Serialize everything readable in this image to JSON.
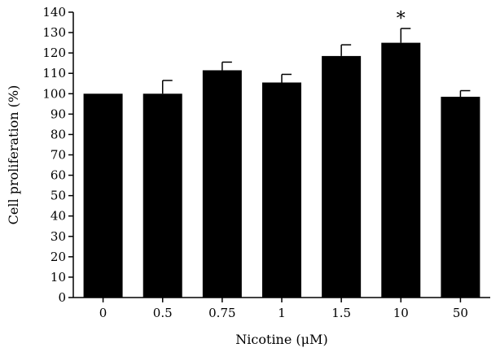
{
  "chart_data": {
    "type": "bar",
    "title": "",
    "xlabel": "Nicotine (μM)",
    "ylabel": "Cell proliferation (%)",
    "categories": [
      "0",
      "0.5",
      "0.75",
      "1",
      "1.5",
      "10",
      "50"
    ],
    "values": [
      100,
      100,
      111.5,
      105.5,
      118.5,
      125,
      98.5
    ],
    "errors": [
      0,
      6.5,
      4,
      4,
      5.5,
      7,
      3
    ],
    "annotations": [
      "",
      "",
      "",
      "",
      "",
      "*",
      ""
    ],
    "ylim": [
      0,
      140
    ],
    "yticks": [
      0,
      10,
      20,
      30,
      40,
      50,
      60,
      70,
      80,
      90,
      100,
      110,
      120,
      130,
      140
    ],
    "grid": false,
    "legend": "none",
    "colors": {
      "bar": "#000000",
      "axis": "#000000",
      "background": "#ffffff"
    }
  }
}
